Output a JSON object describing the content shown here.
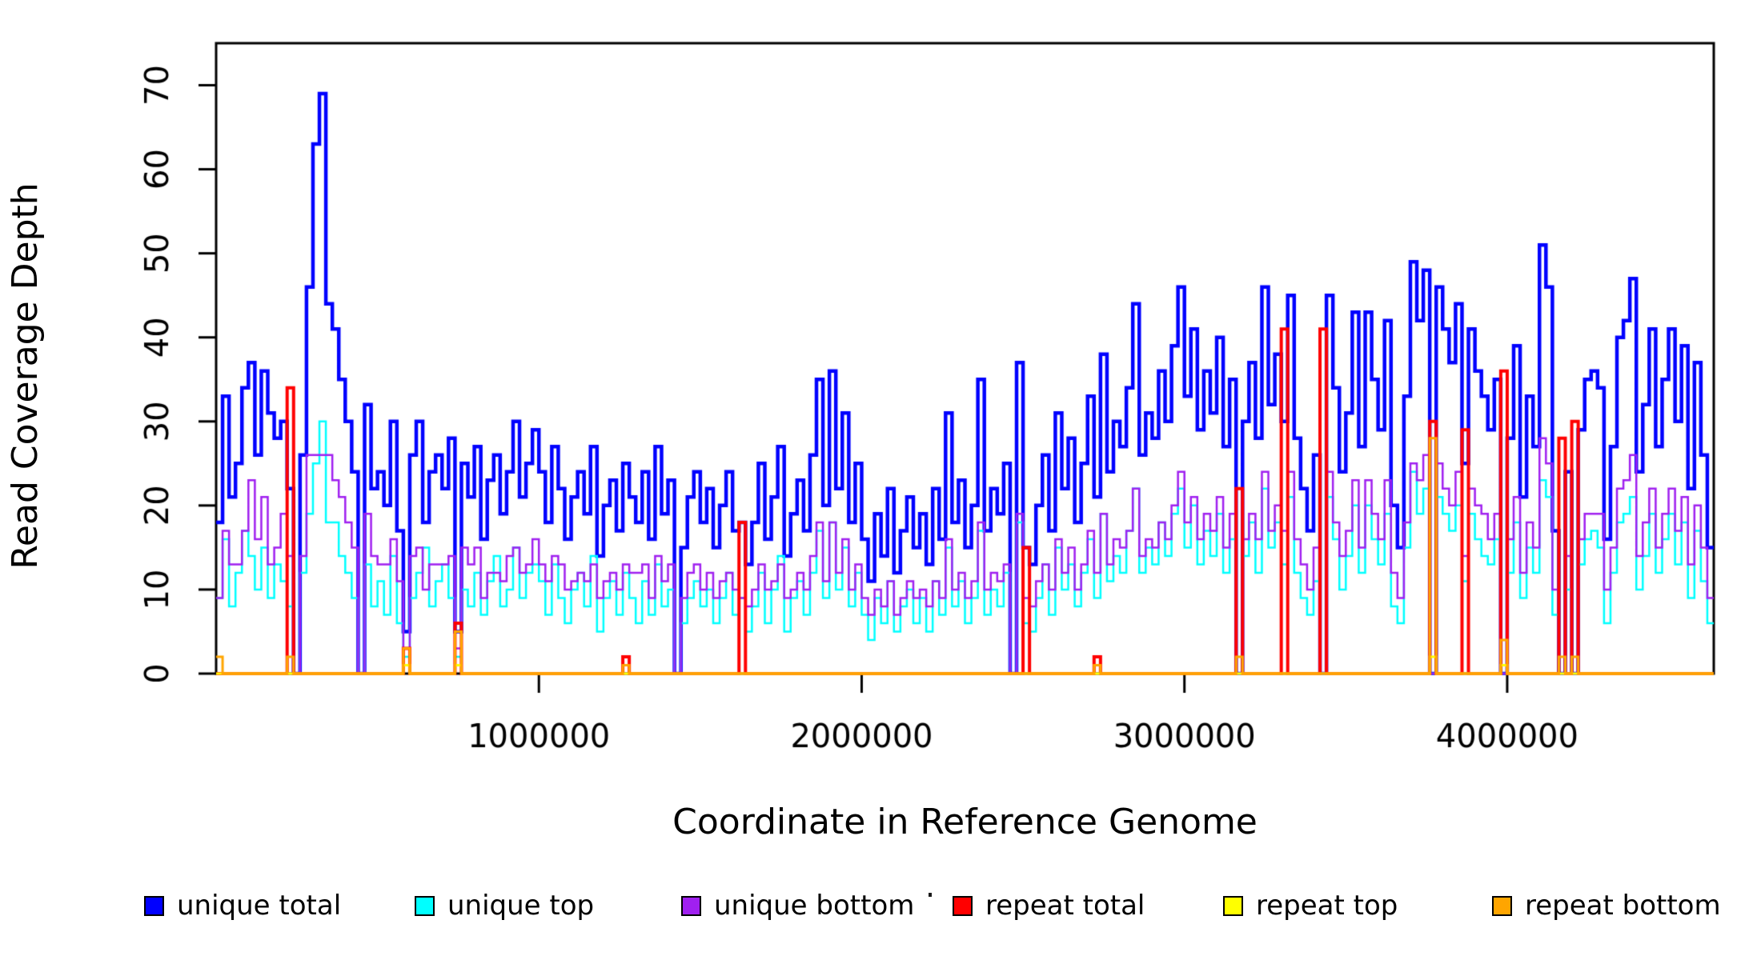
{
  "chart_data": {
    "type": "line",
    "subtype": "step",
    "title": "",
    "xlabel": "Coordinate in Reference Genome",
    "ylabel": "Read Coverage Depth",
    "xlim": [
      0,
      4640000
    ],
    "ylim": [
      0,
      75
    ],
    "xticks": [
      1000000,
      2000000,
      3000000,
      4000000
    ],
    "xtick_labels": [
      "1000000",
      "2000000",
      "3000000",
      "4000000"
    ],
    "yticks": [
      0,
      10,
      20,
      30,
      40,
      50,
      60,
      70
    ],
    "ytick_labels": [
      "0",
      "10",
      "20",
      "30",
      "40",
      "50",
      "60",
      "70"
    ],
    "grid": false,
    "box": true,
    "legend_position": "bottom",
    "bin_size": 20000,
    "n_bins": 232,
    "series": [
      {
        "name": "unique total",
        "color": "#0000FF",
        "line_width": 4.5,
        "values": [
          18,
          33,
          21,
          25,
          34,
          37,
          26,
          36,
          31,
          28,
          30,
          22,
          0,
          26,
          46,
          63,
          69,
          44,
          41,
          35,
          30,
          24,
          0,
          32,
          22,
          24,
          20,
          30,
          17,
          5,
          26,
          30,
          18,
          24,
          26,
          22,
          28,
          5,
          25,
          21,
          27,
          16,
          23,
          26,
          19,
          24,
          30,
          21,
          25,
          29,
          24,
          18,
          27,
          22,
          16,
          21,
          24,
          19,
          27,
          14,
          20,
          23,
          17,
          25,
          21,
          18,
          24,
          16,
          27,
          19,
          23,
          0,
          15,
          21,
          24,
          18,
          22,
          15,
          20,
          24,
          17,
          18,
          13,
          18,
          25,
          16,
          21,
          27,
          14,
          19,
          23,
          17,
          26,
          35,
          20,
          36,
          22,
          31,
          18,
          25,
          16,
          11,
          19,
          14,
          22,
          12,
          17,
          21,
          15,
          19,
          13,
          22,
          16,
          31,
          18,
          23,
          15,
          20,
          35,
          17,
          22,
          19,
          25,
          0,
          37,
          15,
          13,
          20,
          26,
          17,
          31,
          22,
          28,
          18,
          25,
          33,
          21,
          38,
          24,
          30,
          27,
          34,
          44,
          26,
          31,
          28,
          36,
          30,
          39,
          46,
          33,
          41,
          29,
          36,
          31,
          40,
          27,
          35,
          0,
          30,
          37,
          28,
          46,
          32,
          38,
          30,
          45,
          28,
          22,
          17,
          26,
          0,
          45,
          34,
          24,
          31,
          43,
          27,
          43,
          35,
          29,
          42,
          20,
          15,
          33,
          49,
          42,
          48,
          0,
          46,
          41,
          37,
          44,
          25,
          41,
          36,
          33,
          29,
          35,
          0,
          28,
          39,
          21,
          33,
          27,
          51,
          46,
          17,
          0,
          24,
          0,
          29,
          35,
          36,
          34,
          16,
          27,
          40,
          42,
          47,
          24,
          32,
          41,
          27,
          35,
          41,
          30,
          39,
          22,
          37,
          26,
          15
        ]
      },
      {
        "name": "unique top",
        "color": "#00FFFF",
        "line_width": 2.5,
        "values": [
          9,
          16,
          8,
          12,
          17,
          14,
          10,
          15,
          9,
          13,
          11,
          8,
          0,
          12,
          19,
          25,
          30,
          18,
          18,
          14,
          12,
          9,
          0,
          13,
          8,
          11,
          7,
          14,
          6,
          2,
          9,
          12,
          15,
          8,
          11,
          13,
          9,
          2,
          10,
          8,
          12,
          7,
          11,
          14,
          8,
          10,
          15,
          9,
          12,
          13,
          11,
          7,
          13,
          9,
          6,
          10,
          12,
          8,
          14,
          5,
          9,
          11,
          7,
          12,
          9,
          6,
          11,
          7,
          13,
          8,
          10,
          0,
          6,
          9,
          11,
          8,
          10,
          6,
          9,
          12,
          7,
          9,
          5,
          8,
          12,
          6,
          10,
          14,
          5,
          9,
          11,
          7,
          12,
          17,
          9,
          18,
          10,
          15,
          8,
          12,
          7,
          4,
          9,
          6,
          11,
          5,
          8,
          10,
          6,
          9,
          5,
          11,
          7,
          15,
          8,
          11,
          6,
          9,
          17,
          7,
          10,
          8,
          12,
          0,
          18,
          6,
          5,
          9,
          13,
          7,
          15,
          10,
          13,
          8,
          12,
          16,
          9,
          19,
          11,
          14,
          12,
          17,
          22,
          12,
          15,
          13,
          18,
          14,
          19,
          22,
          15,
          20,
          13,
          17,
          14,
          19,
          12,
          16,
          0,
          14,
          18,
          12,
          22,
          15,
          18,
          13,
          21,
          12,
          9,
          7,
          11,
          0,
          21,
          16,
          10,
          14,
          20,
          12,
          20,
          16,
          13,
          19,
          8,
          6,
          15,
          24,
          19,
          22,
          0,
          21,
          19,
          17,
          20,
          11,
          19,
          16,
          14,
          13,
          16,
          0,
          12,
          18,
          9,
          15,
          12,
          23,
          21,
          7,
          0,
          10,
          0,
          13,
          16,
          17,
          15,
          6,
          12,
          18,
          19,
          21,
          10,
          14,
          19,
          12,
          16,
          19,
          13,
          18,
          9,
          17,
          11,
          6
        ]
      },
      {
        "name": "unique bottom",
        "color": "#A020F0",
        "line_width": 2.5,
        "values": [
          9,
          17,
          13,
          13,
          17,
          23,
          16,
          21,
          13,
          15,
          19,
          14,
          0,
          14,
          26,
          26,
          26,
          26,
          23,
          21,
          18,
          15,
          0,
          19,
          14,
          13,
          13,
          16,
          11,
          3,
          14,
          15,
          10,
          13,
          13,
          13,
          14,
          3,
          15,
          13,
          15,
          9,
          12,
          12,
          11,
          14,
          15,
          12,
          13,
          16,
          13,
          11,
          14,
          13,
          10,
          11,
          12,
          11,
          13,
          9,
          11,
          12,
          10,
          13,
          12,
          12,
          13,
          9,
          14,
          11,
          13,
          0,
          9,
          12,
          13,
          10,
          12,
          9,
          11,
          12,
          10,
          9,
          8,
          10,
          13,
          10,
          11,
          13,
          9,
          10,
          12,
          10,
          14,
          18,
          11,
          18,
          12,
          16,
          10,
          13,
          9,
          7,
          10,
          8,
          11,
          7,
          9,
          11,
          9,
          10,
          8,
          11,
          9,
          16,
          10,
          12,
          9,
          11,
          18,
          10,
          12,
          11,
          13,
          0,
          19,
          9,
          8,
          11,
          13,
          10,
          16,
          12,
          15,
          10,
          13,
          17,
          12,
          19,
          13,
          16,
          15,
          17,
          22,
          14,
          16,
          15,
          18,
          16,
          20,
          24,
          18,
          21,
          16,
          19,
          17,
          21,
          15,
          19,
          0,
          16,
          19,
          16,
          24,
          17,
          20,
          17,
          24,
          16,
          13,
          10,
          15,
          0,
          24,
          18,
          14,
          17,
          23,
          15,
          23,
          19,
          16,
          23,
          12,
          9,
          18,
          25,
          23,
          26,
          0,
          25,
          22,
          20,
          24,
          14,
          22,
          20,
          19,
          16,
          19,
          0,
          16,
          21,
          12,
          18,
          15,
          28,
          25,
          10,
          0,
          14,
          0,
          16,
          19,
          19,
          19,
          10,
          15,
          22,
          23,
          26,
          14,
          18,
          22,
          15,
          19,
          22,
          17,
          21,
          13,
          20,
          15,
          9
        ]
      },
      {
        "name": "repeat total",
        "color": "#FF0000",
        "line_width": 4,
        "baseline": 0,
        "spikes": [
          [
            11,
            34
          ],
          [
            29,
            3
          ],
          [
            37,
            6
          ],
          [
            63,
            2
          ],
          [
            81,
            18
          ],
          [
            125,
            15
          ],
          [
            136,
            2
          ],
          [
            158,
            22
          ],
          [
            165,
            41
          ],
          [
            171,
            41
          ],
          [
            188,
            30
          ],
          [
            193,
            29
          ],
          [
            199,
            36
          ],
          [
            208,
            28
          ],
          [
            210,
            30
          ]
        ]
      },
      {
        "name": "repeat top",
        "color": "#FFFF00",
        "line_width": 3,
        "baseline": 0,
        "spikes": [
          [
            29,
            1
          ],
          [
            37,
            1
          ],
          [
            188,
            2
          ],
          [
            199,
            1
          ]
        ]
      },
      {
        "name": "repeat bottom",
        "color": "#FFA500",
        "line_width": 3,
        "baseline": 0,
        "spikes": [
          [
            0,
            2
          ],
          [
            11,
            2
          ],
          [
            29,
            3
          ],
          [
            37,
            5
          ],
          [
            63,
            1
          ],
          [
            136,
            1
          ],
          [
            158,
            2
          ],
          [
            188,
            28
          ],
          [
            199,
            4
          ],
          [
            208,
            2
          ],
          [
            210,
            2
          ]
        ]
      }
    ]
  },
  "legend": {
    "items": [
      {
        "label": "unique total",
        "color": "#0000FF"
      },
      {
        "label": "unique top",
        "color": "#00FFFF"
      },
      {
        "label": "unique bottom",
        "color": "#A020F0"
      },
      {
        "label": "repeat total",
        "color": "#FF0000"
      },
      {
        "label": "repeat top",
        "color": "#FFFF00"
      },
      {
        "label": "repeat bottom",
        "color": "#FFA500"
      }
    ]
  },
  "colors": {
    "axis": "#000000",
    "background": "#FFFFFF"
  }
}
